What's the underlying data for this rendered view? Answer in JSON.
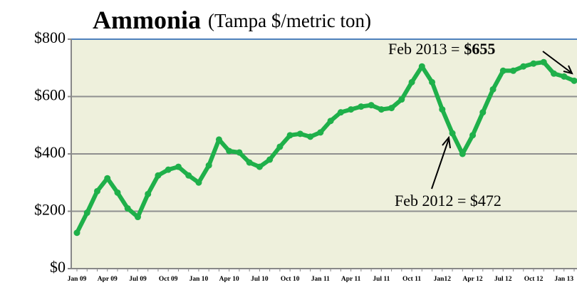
{
  "chart_data": {
    "type": "line",
    "title": "Ammonia",
    "subtitle": "(Tampa $/metric ton)",
    "categories": [
      "Jan 09",
      null,
      null,
      "Apr 09",
      null,
      null,
      "Jul 09",
      null,
      null,
      "Oct 09",
      null,
      null,
      "Jan 10",
      null,
      null,
      "Apr 10",
      null,
      null,
      "Jul 10",
      null,
      null,
      "Oct 10",
      null,
      null,
      "Jan 11",
      null,
      null,
      "Apr 11",
      null,
      null,
      "Jul 11",
      null,
      null,
      "Oct 11",
      null,
      null,
      "Jan12",
      null,
      null,
      "Apr 12",
      null,
      null,
      "Jul 12",
      null,
      null,
      "Oct 12",
      null,
      null,
      "Jan 13",
      null
    ],
    "series": [
      {
        "color": "#1fb04a",
        "values": [
          125,
          195,
          270,
          315,
          265,
          210,
          180,
          260,
          325,
          345,
          355,
          325,
          300,
          360,
          450,
          410,
          405,
          370,
          355,
          380,
          425,
          465,
          470,
          460,
          475,
          515,
          545,
          555,
          565,
          570,
          555,
          560,
          590,
          650,
          705,
          650,
          555,
          472,
          400,
          465,
          545,
          625,
          690,
          690,
          705,
          715,
          720,
          680,
          670,
          655
        ]
      }
    ],
    "ylim": [
      0,
      800
    ],
    "yticks": [
      {
        "value": 0,
        "label": "$0"
      },
      {
        "value": 200,
        "label": "$200"
      },
      {
        "value": 400,
        "label": "$400"
      },
      {
        "value": 600,
        "label": "$600"
      },
      {
        "value": 800,
        "label": "$800"
      }
    ],
    "grid": true,
    "annotations": [
      {
        "text": "Feb 2013 =",
        "bold": "$655"
      },
      {
        "text": "Feb 2012 = $472"
      }
    ]
  }
}
